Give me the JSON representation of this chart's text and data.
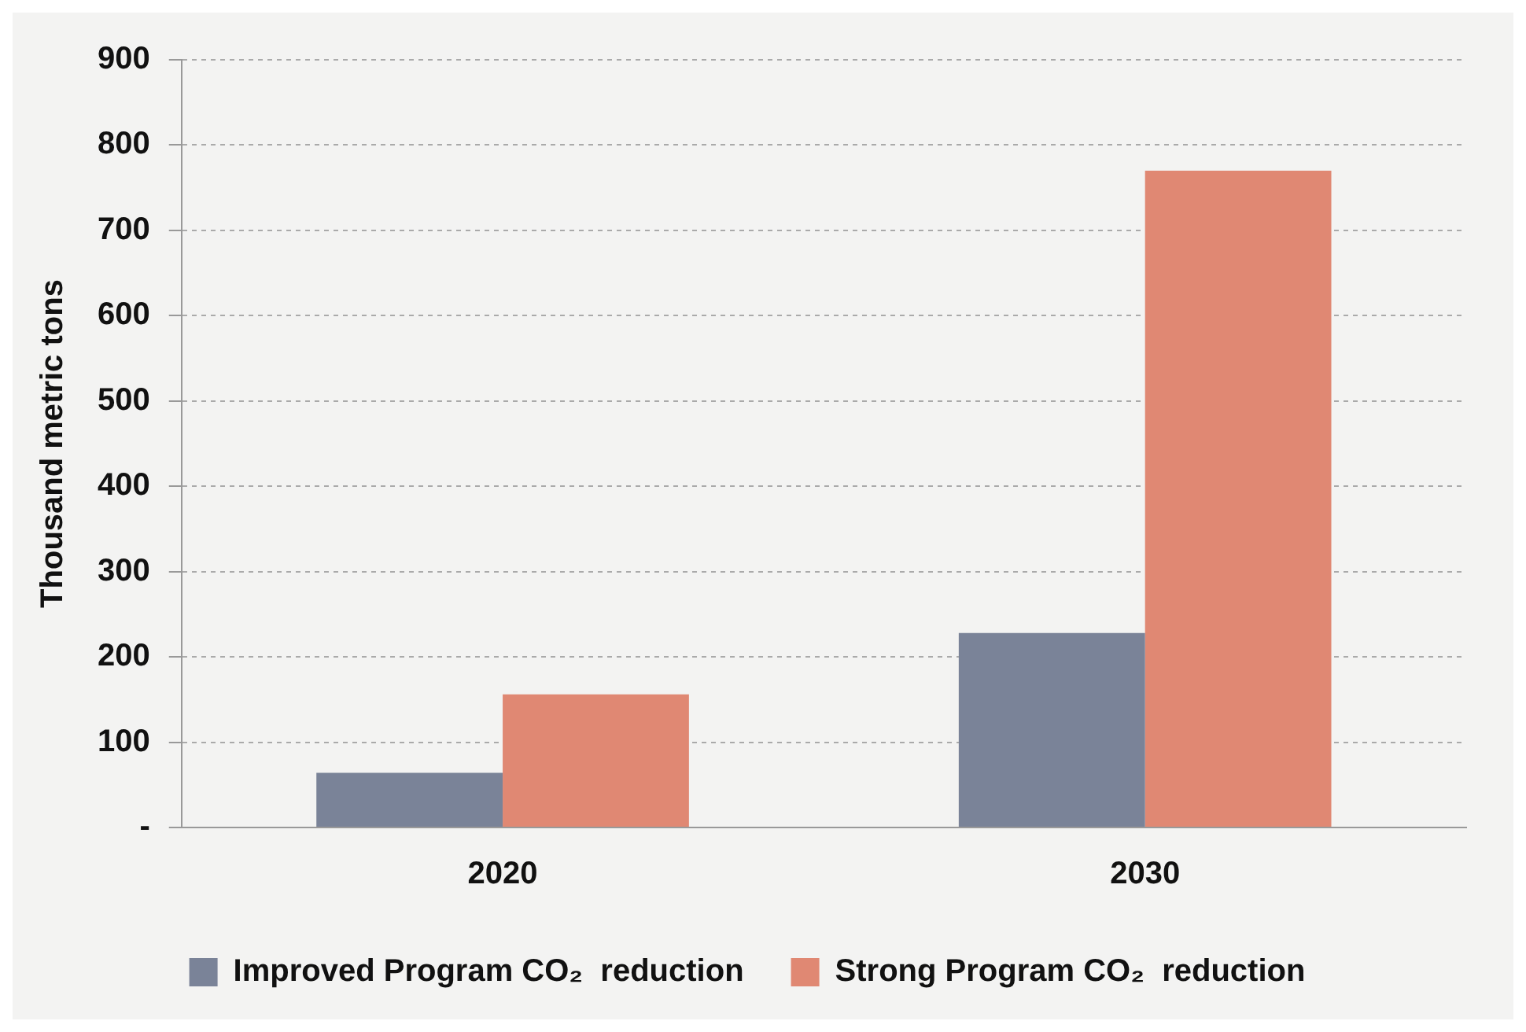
{
  "chart_data": {
    "type": "bar",
    "ylabel": "Thousand metric tons",
    "categories": [
      "2020",
      "2030"
    ],
    "series": [
      {
        "name": "Improved Program CO₂  reduction",
        "color": "#7a8398",
        "values": [
          64,
          228
        ]
      },
      {
        "name": "Strong Program CO₂  reduction",
        "color": "#e08873",
        "values": [
          156,
          770
        ]
      }
    ],
    "ylim": [
      0,
      900
    ],
    "yticks": [
      {
        "value": 0,
        "label": "-"
      },
      100,
      200,
      300,
      400,
      500,
      600,
      700,
      800,
      900
    ],
    "grid": "y",
    "legend": "bottom"
  }
}
